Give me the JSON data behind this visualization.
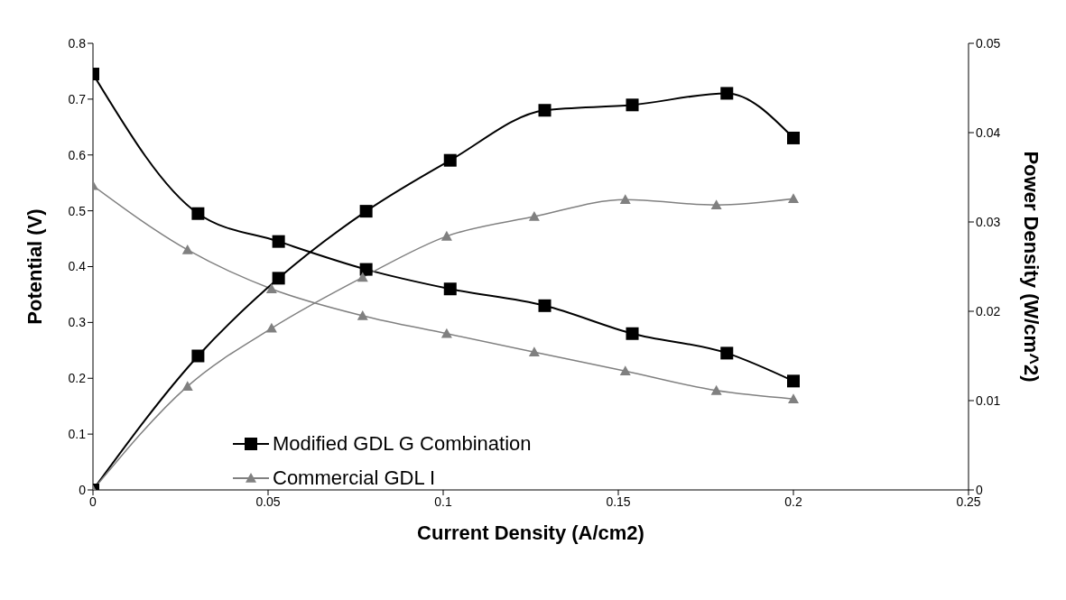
{
  "chart_data": {
    "type": "line",
    "xlabel": "Current Density (A/cm2)",
    "ylabel": "Potential (V)",
    "y2label": "Power Density (W/cm^2)",
    "xlim": [
      0,
      0.25
    ],
    "xticks": [
      0,
      0.05,
      0.1,
      0.15,
      0.2,
      0.25
    ],
    "ylim": [
      0,
      0.8
    ],
    "yticks": [
      0,
      0.1,
      0.2,
      0.3,
      0.4,
      0.5,
      0.6,
      0.7,
      0.8
    ],
    "y2lim": [
      0,
      0.05
    ],
    "y2ticks": [
      0,
      0.01,
      0.02,
      0.03,
      0.04,
      0.05
    ],
    "grid": false,
    "legend": "bottom left",
    "series": [
      {
        "name": "Modified GDL G Combination",
        "color": "#000000",
        "marker": "square",
        "x": [
          0,
          0.03,
          0.053,
          0.078,
          0.102,
          0.129,
          0.154,
          0.181,
          0.2
        ],
        "values": [
          0.745,
          0.495,
          0.445,
          0.395,
          0.36,
          0.33,
          0.28,
          0.245,
          0.195
        ]
      },
      {
        "name": "Commercial GDL I",
        "color": "#808080",
        "marker": "triangle",
        "x": [
          0,
          0.027,
          0.051,
          0.077,
          0.101,
          0.126,
          0.152,
          0.178,
          0.2
        ],
        "values": [
          0.545,
          0.43,
          0.36,
          0.312,
          0.28,
          0.247,
          0.213,
          0.178,
          0.163
        ]
      },
      {
        "color": "#000000",
        "marker": "square",
        "axis": "y2",
        "x": [
          0,
          0.03,
          0.053,
          0.078,
          0.102,
          0.129,
          0.154,
          0.181,
          0.2
        ],
        "values": [
          0,
          0.015,
          0.0237,
          0.0312,
          0.0369,
          0.0425,
          0.0431,
          0.0444,
          0.0394
        ]
      },
      {
        "color": "#808080",
        "marker": "triangle",
        "axis": "y2",
        "x": [
          0,
          0.027,
          0.051,
          0.077,
          0.101,
          0.126,
          0.152,
          0.178,
          0.2
        ],
        "values": [
          0,
          0.0116,
          0.0181,
          0.0238,
          0.0284,
          0.0306,
          0.0325,
          0.0319,
          0.0326
        ]
      }
    ]
  }
}
